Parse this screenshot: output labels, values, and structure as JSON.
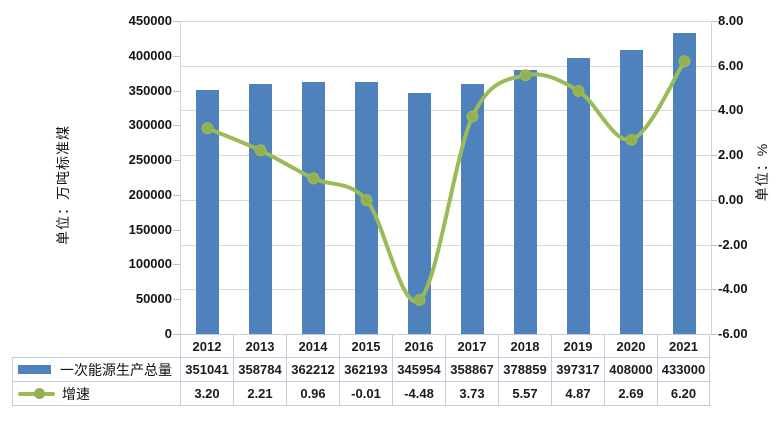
{
  "chart_data": {
    "type": "combo",
    "title": "",
    "categories": [
      "2012",
      "2013",
      "2014",
      "2015",
      "2016",
      "2017",
      "2018",
      "2019",
      "2020",
      "2021"
    ],
    "series": [
      {
        "name": "一次能源生产总量",
        "type": "bar",
        "axis": "left",
        "color": "#4f81bd",
        "values": [
          351041,
          358784,
          362212,
          362193,
          345954,
          358867,
          378859,
          397317,
          408000,
          433000
        ],
        "labels": [
          "351041",
          "358784",
          "362212",
          "362193",
          "345954",
          "358867",
          "378859",
          "397317",
          "408000",
          "433000"
        ]
      },
      {
        "name": "增速",
        "type": "line",
        "smooth": true,
        "axis": "right",
        "color": "#9bbb59",
        "marker_color": "#93b152",
        "values": [
          3.2,
          2.21,
          0.96,
          -0.01,
          -4.48,
          3.73,
          5.57,
          4.87,
          2.69,
          6.2
        ],
        "labels": [
          "3.20",
          "2.21",
          "0.96",
          "-0.01",
          "-4.48",
          "3.73",
          "5.57",
          "4.87",
          "2.69",
          "6.20"
        ]
      }
    ],
    "left_axis": {
      "title": "单位：万吨标准煤",
      "min": 0,
      "max": 450000,
      "step": 50000,
      "ticks": [
        "450000",
        "400000",
        "350000",
        "300000",
        "250000",
        "200000",
        "150000",
        "100000",
        "50000",
        "0"
      ]
    },
    "right_axis": {
      "title": "单位：%",
      "min": -6,
      "max": 8,
      "step": 2,
      "ticks": [
        "8.00",
        "6.00",
        "4.00",
        "2.00",
        "0.00",
        "-2.00",
        "-4.00",
        "-6.00"
      ]
    },
    "legend": {
      "position": "table-left",
      "entries": [
        "一次能源生产总量",
        "增速"
      ]
    },
    "grid": true,
    "gridline_color": "#d9d9d9",
    "border_color": "#c3cede"
  }
}
